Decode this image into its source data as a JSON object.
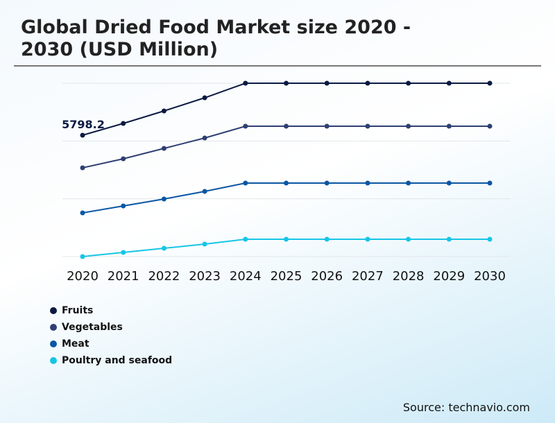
{
  "title": "Global Dried Food Market size 2020 - 2030 (USD Million)",
  "source": "Source: technavio.com",
  "chart_data": {
    "type": "line",
    "title": "Global Dried Food Market size 2020 - 2030 (USD Million)",
    "x": [
      "2020",
      "2021",
      "2022",
      "2023",
      "2024",
      "2025",
      "2026",
      "2027",
      "2028",
      "2029",
      "2030"
    ],
    "ylim": [
      0,
      8283
    ],
    "grid": true,
    "legend": "bottom-left",
    "data_labels": [
      {
        "series": "Fruits",
        "x": "2020",
        "text": "5798.2"
      }
    ],
    "series": [
      {
        "name": "Fruits",
        "color": "#0b1a42",
        "values": [
          5798.2,
          6361,
          6958,
          7587,
          8283,
          8283,
          8283,
          8283,
          8283,
          8283,
          8283
        ]
      },
      {
        "name": "Vegetables",
        "color": "#2e3f72",
        "values": [
          4241,
          4672,
          5169,
          5666,
          6229,
          6229,
          6229,
          6229,
          6229,
          6229,
          6229
        ]
      },
      {
        "name": "Meat",
        "color": "#0a56a4",
        "values": [
          2087,
          2419,
          2750,
          3114,
          3512,
          3512,
          3512,
          3512,
          3512,
          3512,
          3512
        ]
      },
      {
        "name": "Poultry and seafood",
        "color": "#16c5e6",
        "values": [
          0,
          199,
          398,
          596,
          828,
          828,
          828,
          828,
          828,
          828,
          828
        ]
      }
    ]
  }
}
